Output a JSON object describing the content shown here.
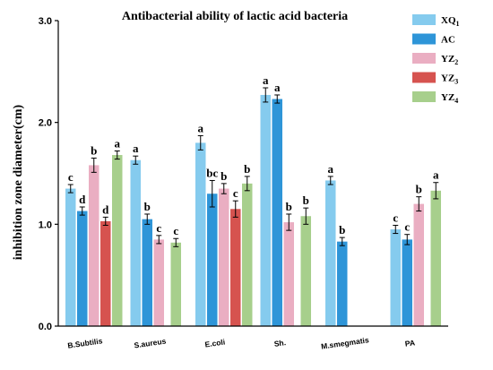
{
  "chart_data": {
    "type": "bar",
    "title": "Antibacterial ability of lactic acid bacteria",
    "xlabel": "",
    "ylabel": "inhibition zone diameter(cm)",
    "ylim": [
      0,
      3.0
    ],
    "yticks": [
      "0.0",
      "1.0",
      "2.0",
      "3.0"
    ],
    "legend_position": "top-right",
    "categories": [
      "B.Subtilis",
      "S.aureus",
      "E.coli",
      "Sh.",
      "M.smegmatis",
      "PA"
    ],
    "series": [
      {
        "name": "XQ1",
        "legend": {
          "base": "XQ",
          "sub": "1"
        },
        "color": "#85cbee",
        "values": [
          1.35,
          1.63,
          1.8,
          2.27,
          1.43,
          0.95
        ],
        "errors": [
          0.04,
          0.04,
          0.07,
          0.07,
          0.04,
          0.04
        ],
        "letters": [
          "c",
          "a",
          "a",
          "a",
          "a",
          "c"
        ]
      },
      {
        "name": "AC",
        "legend": {
          "base": "AC",
          "sub": ""
        },
        "color": "#2e95d8",
        "values": [
          1.13,
          1.05,
          1.3,
          2.23,
          0.83,
          0.85
        ],
        "errors": [
          0.04,
          0.05,
          0.13,
          0.04,
          0.04,
          0.05
        ],
        "letters": [
          "d",
          "b",
          "bc",
          "a",
          "b",
          "c"
        ]
      },
      {
        "name": "YZ2",
        "legend": {
          "base": "YZ",
          "sub": "2"
        },
        "color": "#eaaec2",
        "values": [
          1.58,
          0.85,
          1.35,
          1.02,
          null,
          1.2
        ],
        "errors": [
          0.07,
          0.04,
          0.05,
          0.08,
          null,
          0.07
        ],
        "letters": [
          "b",
          "c",
          "b",
          "b",
          "",
          "b"
        ]
      },
      {
        "name": "YZ3",
        "legend": {
          "base": "YZ",
          "sub": "3"
        },
        "color": "#d6534f",
        "values": [
          1.03,
          null,
          1.15,
          null,
          null,
          null
        ],
        "errors": [
          0.04,
          null,
          0.08,
          null,
          null,
          null
        ],
        "letters": [
          "d",
          "",
          "c",
          "",
          "",
          ""
        ]
      },
      {
        "name": "YZ4",
        "legend": {
          "base": "YZ",
          "sub": "4"
        },
        "color": "#a7cf8c",
        "values": [
          1.68,
          0.82,
          1.4,
          1.08,
          null,
          1.33
        ],
        "errors": [
          0.04,
          0.04,
          0.07,
          0.08,
          null,
          0.08
        ],
        "letters": [
          "a",
          "c",
          "b",
          "b",
          "",
          "a"
        ]
      }
    ]
  }
}
